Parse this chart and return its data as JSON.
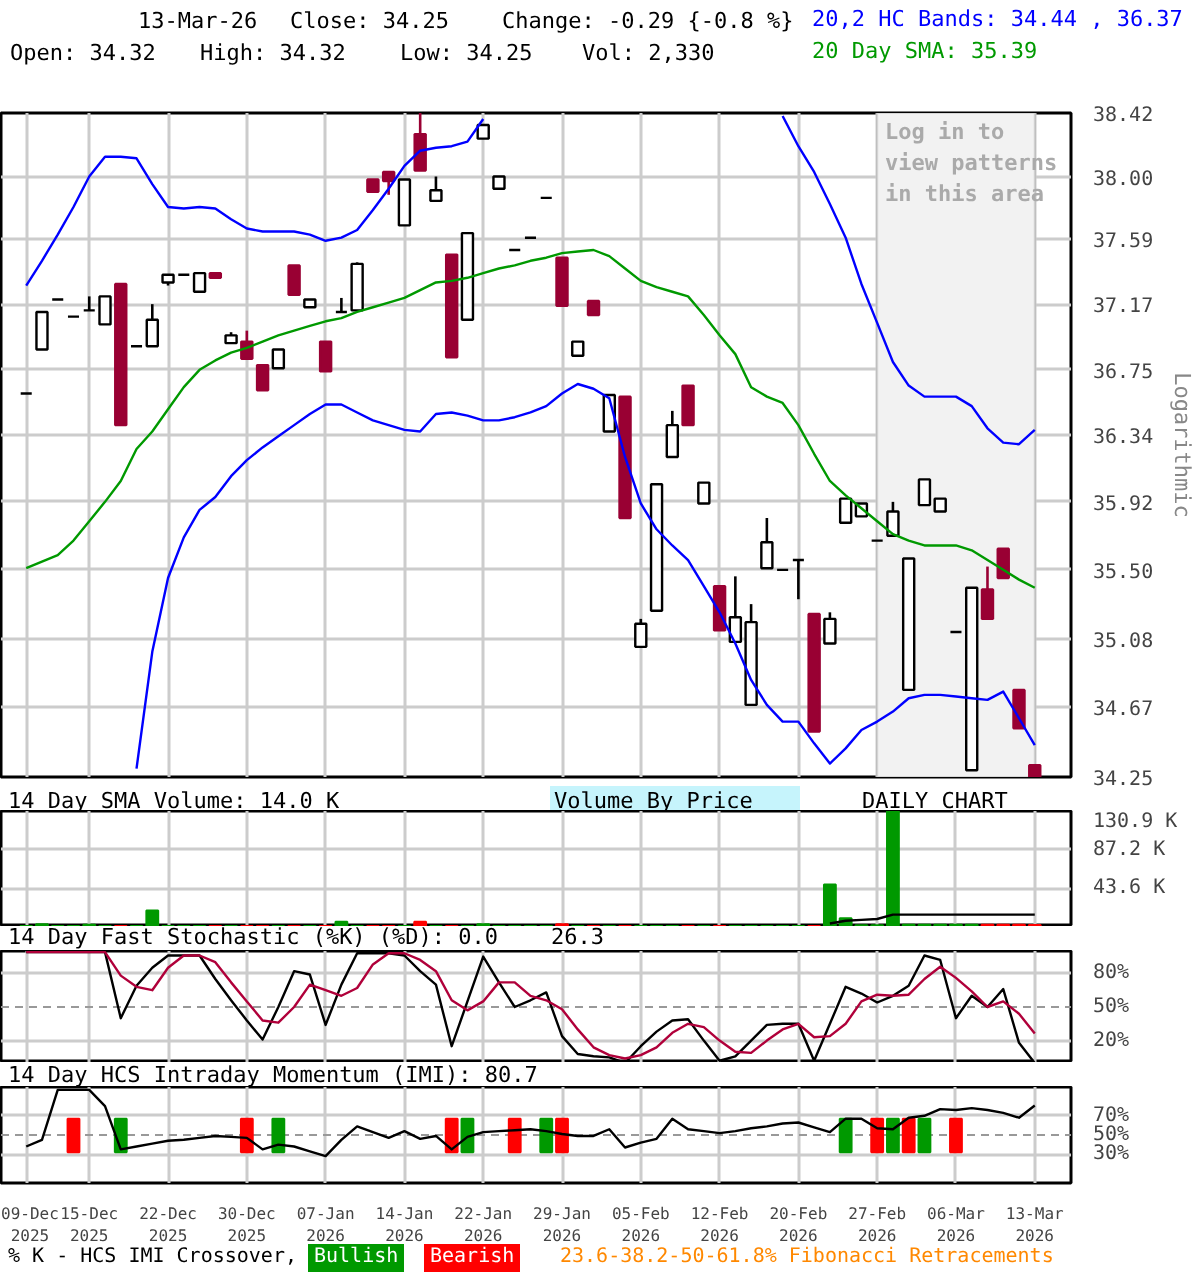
{
  "chart_data": [
    {
      "type": "candlestick",
      "legend": "top",
      "log": true,
      "grid": true,
      "tick_labels": "y",
      "ylabel": "Logarithmic",
      "annotations": [
        "13-Mar-26",
        "Close: 34.25",
        "Change: -0.29 {-0.8 %}",
        "Open: 34.32",
        "High: 34.32",
        "Low: 34.25",
        "Vol: 2,330"
      ],
      "categories": [
        "09-Dec 2025",
        null,
        null,
        null,
        "15-Dec 2025",
        null,
        null,
        null,
        null,
        "22-Dec 2025",
        null,
        null,
        null,
        null,
        "30-Dec 2025",
        null,
        null,
        null,
        null,
        "07-Jan 2026",
        null,
        null,
        null,
        null,
        "14-Jan 2026",
        null,
        null,
        null,
        null,
        "22-Jan 2026",
        null,
        null,
        null,
        null,
        "29-Jan 2026",
        null,
        null,
        null,
        null,
        "05-Feb 2026",
        null,
        null,
        null,
        null,
        "12-Feb 2026",
        null,
        null,
        null,
        null,
        "20-Feb 2026",
        null,
        null,
        null,
        null,
        "27-Feb 2026",
        null,
        null,
        null,
        null,
        "06-Mar 2026",
        null,
        null,
        null,
        null,
        "13-Mar 2026"
      ],
      "ylim": [
        34.25,
        38.42
      ],
      "yticks": [
        34.25,
        34.67,
        35.08,
        {
          "value": 35.5,
          "label": "35.50"
        },
        35.92,
        36.34,
        36.75,
        37.17,
        37.59,
        {
          "value": 38,
          "label": "38.00"
        },
        38.42
      ],
      "ohlc": [
        [
          36.6,
          36.6,
          36.6,
          36.6
        ],
        [
          36.88,
          37.12,
          36.88,
          37.12
        ],
        [
          37.2,
          37.2,
          37.2,
          37.2
        ],
        [
          37.09,
          37.09,
          37.09,
          37.09
        ],
        [
          37.13,
          37.22,
          37.13,
          37.13
        ],
        [
          37.04,
          37.22,
          37.04,
          37.22
        ],
        [
          37.3,
          37.3,
          36.4,
          36.4
        ],
        [
          36.9,
          36.9,
          36.9,
          36.9
        ],
        [
          36.9,
          37.17,
          36.9,
          37.07
        ],
        [
          37.31,
          37.36,
          37.29,
          37.36
        ],
        [
          37.36,
          37.36,
          37.36,
          37.36
        ],
        [
          37.25,
          37.37,
          37.25,
          37.37
        ],
        [
          37.37,
          37.37,
          37.34,
          37.34
        ],
        [
          36.92,
          36.99,
          36.92,
          36.97
        ],
        [
          36.93,
          37.0,
          36.82,
          36.82
        ],
        [
          36.78,
          36.78,
          36.62,
          36.62
        ],
        [
          36.76,
          36.88,
          36.76,
          36.88
        ],
        [
          37.42,
          37.42,
          37.23,
          37.23
        ],
        [
          37.15,
          37.2,
          37.15,
          37.2
        ],
        [
          36.93,
          36.93,
          36.74,
          36.74
        ],
        [
          37.12,
          37.21,
          37.12,
          37.12
        ],
        [
          37.13,
          37.44,
          37.13,
          37.43
        ],
        [
          37.98,
          37.98,
          37.9,
          37.9
        ],
        [
          38.03,
          38.03,
          37.88,
          37.97
        ],
        [
          37.68,
          37.98,
          37.68,
          37.98
        ],
        [
          38.28,
          38.42,
          38.04,
          38.04
        ],
        [
          37.84,
          38.0,
          37.84,
          37.91
        ],
        [
          37.49,
          37.49,
          36.83,
          36.83
        ],
        [
          37.07,
          37.63,
          37.07,
          37.63
        ],
        [
          38.25,
          38.34,
          38.25,
          38.34
        ],
        [
          37.92,
          38.0,
          37.92,
          38.0
        ],
        [
          37.52,
          37.52,
          37.52,
          37.52
        ],
        [
          37.6,
          37.6,
          37.6,
          37.6
        ],
        [
          37.86,
          37.86,
          37.86,
          37.86
        ],
        [
          37.47,
          37.47,
          37.16,
          37.16
        ],
        [
          36.84,
          36.93,
          36.84,
          36.93
        ],
        [
          37.19,
          37.19,
          37.1,
          37.1
        ],
        [
          36.36,
          36.59,
          36.36,
          36.59
        ],
        [
          36.58,
          36.58,
          35.82,
          35.82
        ],
        [
          35.03,
          35.2,
          35.03,
          35.17
        ],
        [
          35.25,
          36.03,
          35.25,
          36.03
        ],
        [
          36.2,
          36.49,
          36.2,
          36.4
        ],
        [
          36.65,
          36.65,
          36.4,
          36.4
        ],
        [
          35.91,
          36.04,
          35.91,
          36.04
        ],
        [
          35.4,
          35.4,
          35.13,
          35.13
        ],
        [
          35.06,
          35.46,
          35.06,
          35.21
        ],
        [
          34.68,
          35.29,
          34.68,
          35.18
        ],
        [
          35.51,
          35.82,
          35.51,
          35.67
        ],
        [
          35.5,
          35.5,
          35.5,
          35.5
        ],
        [
          35.56,
          35.56,
          35.32,
          35.56
        ],
        [
          35.23,
          35.23,
          34.52,
          34.52
        ],
        [
          35.05,
          35.24,
          35.05,
          35.2
        ],
        [
          35.79,
          35.94,
          35.79,
          35.94
        ],
        [
          35.83,
          35.91,
          35.83,
          35.91
        ],
        [
          35.68,
          35.68,
          35.68,
          35.68
        ],
        [
          35.71,
          35.92,
          35.71,
          35.86
        ],
        [
          34.77,
          35.57,
          34.77,
          35.57
        ],
        [
          35.9,
          36.06,
          35.9,
          36.06
        ],
        [
          35.86,
          35.94,
          35.86,
          35.94
        ],
        [
          35.12,
          35.12,
          35.12,
          35.12
        ],
        [
          34.29,
          35.39,
          34.29,
          35.39
        ],
        [
          35.38,
          35.52,
          35.2,
          35.2
        ],
        [
          35.63,
          35.63,
          35.45,
          35.45
        ],
        [
          34.77,
          34.77,
          34.54,
          34.54
        ],
        [
          34.32,
          34.32,
          34.25,
          34.25
        ]
      ],
      "colors": [
        "#000000",
        "#ffffff",
        "#000000",
        "#000000",
        "#000000",
        "#ffffff",
        "#990033",
        "#000000",
        "#ffffff",
        "#ffffff",
        "#000000",
        "#ffffff",
        "#990033",
        "#ffffff",
        "#990033",
        "#990033",
        "#ffffff",
        "#990033",
        "#ffffff",
        "#990033",
        "#000000",
        "#ffffff",
        "#990033",
        "#990033",
        "#ffffff",
        "#990033",
        "#ffffff",
        "#990033",
        "#ffffff",
        "#ffffff",
        "#ffffff",
        "#000000",
        "#000000",
        "#000000",
        "#990033",
        "#ffffff",
        "#990033",
        "#ffffff",
        "#990033",
        "#ffffff",
        "#ffffff",
        "#ffffff",
        "#990033",
        "#ffffff",
        "#990033",
        "#ffffff",
        "#ffffff",
        "#ffffff",
        "#000000",
        "#000000",
        "#990033",
        "#ffffff",
        "#ffffff",
        "#ffffff",
        "#000000",
        "#ffffff",
        "#ffffff",
        "#ffffff",
        "#ffffff",
        "#000000",
        "#ffffff",
        "#990033",
        "#990033",
        "#990033",
        "#990033"
      ],
      "bands": [
        {
          "axis": "x",
          "from": "27-Feb 2026",
          "to": "13-Mar 2026",
          "label": "Log in to view patterns in this area",
          "color": "#f2f2f2"
        }
      ],
      "series": [
        {
          "name": "20,2 HC Bands: 34.44 , 36.37",
          "type": "line",
          "color": "#0000ff",
          "values": [
            37.29,
            37.45,
            37.62,
            37.8,
            38.0,
            38.13,
            38.13,
            38.12,
            37.95,
            37.8,
            37.79,
            37.8,
            37.79,
            37.72,
            37.66,
            37.64,
            37.64,
            37.64,
            37.62,
            37.58,
            37.6,
            37.65,
            37.78,
            37.92,
            38.07,
            38.17,
            38.19,
            38.2,
            38.23,
            38.38,
            null,
            null,
            null,
            null,
            null,
            null,
            null,
            null,
            null,
            null,
            null,
            null,
            null,
            null,
            null,
            null,
            null,
            null,
            38.4,
            38.2,
            38.03,
            37.82,
            37.6,
            37.3,
            37.05,
            36.8,
            36.65,
            36.58,
            36.58,
            36.58,
            36.52,
            36.38,
            36.29,
            36.28,
            36.37
          ]
        },
        {
          "type": "line",
          "color": "#0000ff",
          "values": [
            null,
            null,
            null,
            null,
            null,
            null,
            null,
            34.3,
            35.0,
            35.45,
            35.7,
            35.87,
            35.95,
            36.08,
            36.18,
            36.26,
            36.33,
            36.4,
            36.47,
            36.53,
            36.53,
            36.48,
            36.43,
            36.4,
            36.37,
            36.36,
            36.47,
            36.48,
            36.46,
            36.43,
            36.43,
            36.45,
            36.48,
            36.52,
            36.6,
            36.66,
            36.63,
            36.57,
            36.2,
            35.91,
            35.75,
            35.65,
            35.56,
            35.4,
            35.24,
            35.05,
            34.83,
            34.68,
            34.58,
            34.58,
            34.45,
            34.33,
            34.42,
            34.53,
            34.58,
            34.64,
            34.72,
            34.74,
            34.74,
            34.73,
            34.72,
            34.71,
            34.76,
            34.6,
            34.44
          ]
        },
        {
          "name": "20 Day SMA: 35.39",
          "type": "line",
          "color": "#009900",
          "values": [
            35.51,
            35.55,
            35.59,
            35.68,
            35.8,
            35.92,
            36.05,
            36.25,
            36.36,
            36.5,
            36.64,
            36.75,
            36.81,
            36.86,
            36.89,
            36.93,
            36.97,
            37.0,
            37.03,
            37.06,
            37.08,
            37.12,
            37.15,
            37.18,
            37.21,
            37.26,
            37.31,
            37.32,
            37.34,
            37.37,
            37.4,
            37.42,
            37.45,
            37.47,
            37.5,
            37.51,
            37.52,
            37.48,
            37.4,
            37.32,
            37.28,
            37.25,
            37.22,
            37.1,
            36.97,
            36.85,
            36.64,
            36.58,
            36.54,
            36.4,
            36.22,
            36.05,
            35.96,
            35.88,
            35.8,
            35.72,
            35.68,
            35.65,
            35.65,
            35.65,
            35.62,
            35.56,
            35.5,
            35.44,
            35.39
          ]
        }
      ]
    },
    {
      "type": "bar",
      "title": "14 Day SMA Volume: 14.0 K",
      "annotations": [
        "Volume By Price",
        "DAILY CHART"
      ],
      "grid": true,
      "tick_labels": "y",
      "categories": [
        "09-Dec 2025",
        null,
        null,
        null,
        "15-Dec 2025",
        null,
        null,
        null,
        null,
        "22-Dec 2025",
        null,
        null,
        null,
        null,
        "30-Dec 2025",
        null,
        null,
        null,
        null,
        "07-Jan 2026",
        null,
        null,
        null,
        null,
        "14-Jan 2026",
        null,
        null,
        null,
        null,
        "22-Jan 2026",
        null,
        null,
        null,
        null,
        "29-Jan 2026",
        null,
        null,
        null,
        null,
        "05-Feb 2026",
        null,
        null,
        null,
        null,
        "12-Feb 2026",
        null,
        null,
        null,
        null,
        "20-Feb 2026",
        null,
        null,
        null,
        null,
        "27-Feb 2026",
        null,
        null,
        null,
        null,
        "06-Mar 2026",
        null,
        null,
        null,
        null,
        "13-Mar 2026"
      ],
      "ylim": [
        0,
        130.9
      ],
      "yticks": [
        {
          "value": 43.6,
          "label": "43.6 K"
        },
        {
          "value": 87.2,
          "label": "87.2 K"
        },
        {
          "value": 130.9,
          "label": "130.9 K"
        }
      ],
      "values": [
        1,
        3,
        1,
        1,
        2.5,
        1,
        1,
        1,
        18.6,
        1,
        1,
        1,
        1,
        1,
        1,
        1,
        1,
        1,
        1,
        1,
        6,
        1,
        1,
        1,
        1,
        6,
        1,
        1,
        1,
        3,
        1,
        1,
        1,
        1,
        3,
        1,
        1,
        1,
        1,
        1,
        1,
        1,
        1,
        1,
        1,
        1,
        1,
        1,
        1,
        1,
        1,
        48,
        10,
        2,
        2,
        130.9,
        2.5,
        2.5,
        2.5,
        2.5,
        2.5,
        2.5,
        2.5,
        2.5,
        2.3
      ],
      "colors": [
        "#009900",
        "#009900",
        "#009900",
        "#009900",
        "#009900",
        "#009900",
        "#ff0000",
        "#009900",
        "#009900",
        "#009900",
        "#009900",
        "#009900",
        "#ff0000",
        "#009900",
        "#ff0000",
        "#ff0000",
        "#009900",
        "#ff0000",
        "#009900",
        "#ff0000",
        "#009900",
        "#009900",
        "#ff0000",
        "#ff0000",
        "#009900",
        "#ff0000",
        "#009900",
        "#ff0000",
        "#009900",
        "#009900",
        "#009900",
        "#009900",
        "#009900",
        "#009900",
        "#ff0000",
        "#009900",
        "#ff0000",
        "#009900",
        "#ff0000",
        "#009900",
        "#009900",
        "#009900",
        "#ff0000",
        "#009900",
        "#ff0000",
        "#009900",
        "#009900",
        "#009900",
        "#009900",
        "#009900",
        "#ff0000",
        "#009900",
        "#009900",
        "#009900",
        "#009900",
        "#009900",
        "#009900",
        "#009900",
        "#009900",
        "#009900",
        "#009900",
        "#ff0000",
        "#ff0000",
        "#ff0000",
        "#ff0000"
      ],
      "series": [
        {
          "type": "line",
          "color": "#000000",
          "values": [
            null,
            null,
            null,
            null,
            null,
            null,
            null,
            null,
            null,
            null,
            null,
            null,
            null,
            null,
            null,
            null,
            null,
            null,
            null,
            null,
            null,
            null,
            null,
            null,
            null,
            null,
            null,
            null,
            null,
            null,
            null,
            null,
            null,
            null,
            null,
            null,
            null,
            null,
            null,
            null,
            null,
            null,
            null,
            null,
            null,
            null,
            null,
            null,
            null,
            null,
            null,
            4,
            7,
            8,
            9,
            14,
            14,
            14,
            14,
            14,
            14,
            14,
            14,
            14,
            14.0
          ]
        }
      ]
    },
    {
      "type": "line",
      "title": "14 Day Fast Stochastic (%K) (%D): 0.0    26.3",
      "grid": true,
      "tick_labels": "y",
      "categories": [
        "09-Dec 2025",
        null,
        null,
        null,
        "15-Dec 2025",
        null,
        null,
        null,
        null,
        "22-Dec 2025",
        null,
        null,
        null,
        null,
        "30-Dec 2025",
        null,
        null,
        null,
        null,
        "07-Jan 2026",
        null,
        null,
        null,
        null,
        "14-Jan 2026",
        null,
        null,
        null,
        null,
        "22-Jan 2026",
        null,
        null,
        null,
        null,
        "29-Jan 2026",
        null,
        null,
        null,
        null,
        "05-Feb 2026",
        null,
        null,
        null,
        null,
        "12-Feb 2026",
        null,
        null,
        null,
        null,
        "20-Feb 2026",
        null,
        null,
        null,
        null,
        "27-Feb 2026",
        null,
        null,
        null,
        null,
        "06-Mar 2026",
        null,
        null,
        null,
        null,
        "13-Mar 2026"
      ],
      "ylim": [
        0,
        100
      ],
      "yticks": [
        {
          "value": 20,
          "label": "20%"
        },
        {
          "value": 50,
          "label": "50%"
        },
        {
          "value": 80,
          "label": "80%"
        }
      ],
      "ref_lines": [
        {
          "axis": "y",
          "value": 50,
          "line_style": "dashed",
          "color": "#999999"
        }
      ],
      "series": [
        {
          "color": "#000000",
          "values": [
            99,
            99,
            99,
            99,
            99,
            99,
            40,
            69,
            85,
            96,
            96,
            96,
            75,
            56,
            38,
            21,
            50,
            82,
            79,
            34,
            70,
            98,
            98,
            98,
            96,
            82,
            70,
            15,
            55,
            95,
            72,
            50,
            56,
            63,
            24,
            8,
            6,
            5,
            0,
            15,
            28,
            38,
            39,
            20,
            2,
            6,
            20,
            34,
            35,
            35,
            2,
            35,
            68,
            62,
            54,
            60,
            69,
            96,
            92,
            40,
            60,
            50,
            66,
            18,
            0.0
          ]
        },
        {
          "color": "#b0003a",
          "values": [
            99,
            99,
            99,
            99,
            99,
            99,
            78,
            68,
            65,
            85,
            96,
            96,
            90,
            72,
            55,
            38,
            36,
            50,
            70,
            65,
            60,
            67,
            88,
            98,
            98,
            92,
            82,
            56,
            47,
            55,
            72,
            72,
            60,
            56,
            48,
            30,
            14,
            7,
            4,
            7,
            14,
            27,
            35,
            32,
            20,
            10,
            9,
            20,
            30,
            35,
            23,
            24,
            35,
            55,
            61,
            60,
            61,
            75,
            86,
            76,
            64,
            50,
            55,
            44,
            26.3
          ]
        }
      ]
    },
    {
      "type": "line",
      "title": "14 Day HCS Intraday Momentum (IMI): 80.7",
      "grid": true,
      "legend": "bottom",
      "legend_title": "% K - HCS IMI Crossover,",
      "annotations": [
        "23.6-38.2-50-61.8% Fibonacci Retracements"
      ],
      "categories": [
        "09-Dec 2025",
        null,
        null,
        null,
        "15-Dec 2025",
        null,
        null,
        null,
        null,
        "22-Dec 2025",
        null,
        null,
        null,
        null,
        "30-Dec 2025",
        null,
        null,
        null,
        null,
        "07-Jan 2026",
        null,
        null,
        null,
        null,
        "14-Jan 2026",
        null,
        null,
        null,
        null,
        "22-Jan 2026",
        null,
        null,
        null,
        null,
        "29-Jan 2026",
        null,
        null,
        null,
        null,
        "05-Feb 2026",
        null,
        null,
        null,
        null,
        "12-Feb 2026",
        null,
        null,
        null,
        null,
        "20-Feb 2026",
        null,
        null,
        null,
        null,
        "27-Feb 2026",
        null,
        null,
        null,
        null,
        "06-Mar 2026",
        null,
        null,
        null,
        null,
        "13-Mar 2026"
      ],
      "ylim": [
        0,
        100
      ],
      "yticks": [
        {
          "value": 30,
          "label": "30%"
        },
        {
          "value": 50,
          "label": "50%"
        },
        {
          "value": 70,
          "label": "70%"
        }
      ],
      "ref_lines": [
        {
          "axis": "y",
          "value": 50,
          "line_style": "dashed",
          "color": "#999999"
        }
      ],
      "series": [
        {
          "type": "bar",
          "name": "Bullish",
          "color": "#009900",
          "base": [
            null,
            null,
            null,
            null,
            null,
            null,
            32,
            null,
            null,
            null,
            null,
            null,
            null,
            null,
            null,
            null,
            32,
            null,
            null,
            null,
            null,
            null,
            null,
            null,
            null,
            null,
            null,
            null,
            32,
            null,
            null,
            null,
            null,
            32,
            null,
            null,
            null,
            null,
            null,
            null,
            null,
            null,
            null,
            null,
            null,
            null,
            null,
            null,
            null,
            null,
            null,
            null,
            32,
            null,
            null,
            32,
            null,
            32,
            null,
            null,
            null,
            null,
            null,
            null,
            null
          ],
          "values": [
            null,
            null,
            null,
            null,
            null,
            null,
            35,
            null,
            null,
            null,
            null,
            null,
            null,
            null,
            null,
            null,
            35,
            null,
            null,
            null,
            null,
            null,
            null,
            null,
            null,
            null,
            null,
            null,
            35,
            null,
            null,
            null,
            null,
            35,
            null,
            null,
            null,
            null,
            null,
            null,
            null,
            null,
            null,
            null,
            null,
            null,
            null,
            null,
            null,
            null,
            null,
            null,
            35,
            null,
            null,
            35,
            null,
            35,
            null,
            null,
            null,
            null,
            null,
            null,
            null
          ]
        },
        {
          "type": "bar",
          "name": "Bearish",
          "color": "#ff0000",
          "base": [
            null,
            null,
            null,
            32,
            null,
            null,
            null,
            null,
            null,
            null,
            null,
            null,
            null,
            null,
            32,
            null,
            null,
            null,
            null,
            null,
            null,
            null,
            null,
            null,
            null,
            null,
            null,
            32,
            null,
            null,
            null,
            32,
            null,
            null,
            32,
            null,
            null,
            null,
            null,
            null,
            null,
            null,
            null,
            null,
            null,
            null,
            null,
            null,
            null,
            null,
            null,
            null,
            null,
            null,
            32,
            null,
            32,
            null,
            null,
            32,
            null,
            null,
            null,
            null,
            null
          ],
          "values": [
            null,
            null,
            null,
            35,
            null,
            null,
            null,
            null,
            null,
            null,
            null,
            null,
            null,
            null,
            35,
            null,
            null,
            null,
            null,
            null,
            null,
            null,
            null,
            null,
            null,
            null,
            null,
            35,
            null,
            null,
            null,
            35,
            null,
            null,
            35,
            null,
            null,
            null,
            null,
            null,
            null,
            null,
            null,
            null,
            null,
            null,
            null,
            null,
            null,
            null,
            null,
            null,
            null,
            null,
            35,
            null,
            35,
            null,
            null,
            35,
            null,
            null,
            null,
            null,
            null
          ]
        },
        {
          "type": "line",
          "color": "#000000",
          "values": [
            38,
            45,
            97,
            97,
            97,
            80,
            35,
            38,
            41,
            44,
            45,
            47,
            49,
            48,
            47,
            35,
            40,
            38,
            33,
            28,
            45,
            59,
            53,
            47,
            54,
            46,
            49,
            35,
            48,
            53,
            54,
            55,
            56,
            54,
            51,
            49,
            49,
            56,
            37,
            42,
            46,
            67,
            56,
            54,
            52,
            54,
            57,
            59,
            62,
            63,
            58,
            53,
            67,
            67,
            57,
            56,
            68,
            70,
            77,
            76,
            78,
            76,
            73,
            68,
            80.7
          ]
        }
      ]
    }
  ]
}
